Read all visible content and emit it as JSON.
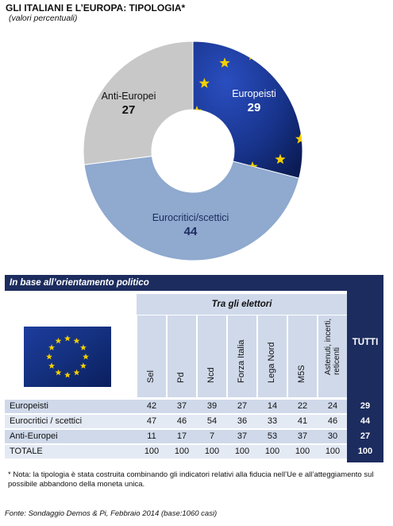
{
  "title": "GLI ITALIANI E L’EUROPA: TIPOLOGIA*",
  "subtitle": "(valori percentuali)",
  "chart_data": {
    "type": "pie",
    "title": "GLI ITALIANI E L’EUROPA: TIPOLOGIA*",
    "subtitle": "(valori percentuali)",
    "categories": [
      "Europeisti",
      "Eurocritici/scettici",
      "Anti-Europei"
    ],
    "values": [
      29,
      44,
      27
    ],
    "colors": [
      "#1a3a9a",
      "#8fa9cf",
      "#c8c8c8"
    ]
  },
  "table": {
    "section_title": "In base all’orientamento politico",
    "group_header": "Tra gli elettori",
    "columns": [
      "Sel",
      "Pd",
      "Ncd",
      "Forza Italia",
      "Lega Nord",
      "M5S",
      "Astenuti, incerti, reticenti"
    ],
    "total_header": "TUTTI",
    "rows": [
      {
        "label": "Europeisti",
        "values": [
          "42",
          "37",
          "39",
          "27",
          "14",
          "22",
          "24"
        ],
        "total": "29"
      },
      {
        "label": "Eurocritici / scettici",
        "values": [
          "47",
          "46",
          "54",
          "36",
          "33",
          "41",
          "46"
        ],
        "total": "44"
      },
      {
        "label": "Anti-Europei",
        "values": [
          "11",
          "17",
          "7",
          "37",
          "53",
          "37",
          "30"
        ],
        "total": "27"
      },
      {
        "label": "TOTALE",
        "values": [
          "100",
          "100",
          "100",
          "100",
          "100",
          "100",
          "100"
        ],
        "total": "100"
      }
    ]
  },
  "note": "* Nota: la tipologia è stata costruita combinando gli indicatori relativi alla fiducia nell’Ue e all’atteggiamento sul possibile abbandono della moneta unica.",
  "source": "Fonte: Sondaggio Demos & Pi, Febbraio 2014 (base:1060 casi)",
  "icons": {
    "flag": "eu-flag-icon"
  }
}
